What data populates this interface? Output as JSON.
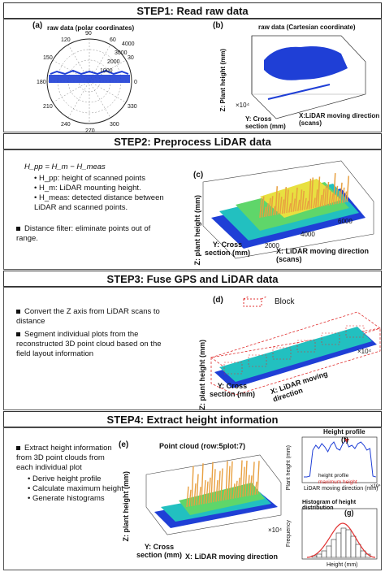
{
  "step1": {
    "header": "STEP1: Read raw data",
    "a_label": "(a)",
    "a_title": "raw data (polar coordinates)",
    "a_ticks": [
      "0",
      "30",
      "60",
      "90",
      "120",
      "150",
      "180",
      "210",
      "240",
      "270",
      "300",
      "330"
    ],
    "a_radial": [
      "1000",
      "2000",
      "3000",
      "4000"
    ],
    "b_label": "(b)",
    "b_title": "raw data  (Cartesian coordinate)",
    "b_z": "Z: Plant height (mm)",
    "b_y": "Y: Cross section (mm)",
    "b_x": "X:LiDAR moving direction (scans)",
    "b_exp": "×10⁴"
  },
  "step2": {
    "header": "STEP2: Preprocess LiDAR data",
    "formula": "H_pp = H_m − H_meas",
    "items": [
      "H_pp: height of scanned points",
      "H_m: LiDAR mounting height.",
      "H_meas: detected distance between LiDAR and scanned points."
    ],
    "filter": "Distance filter: eliminate points out of range.",
    "c_label": "(c)",
    "c_z": "Z: plant height (mm)",
    "c_y": "Y: Cross section (mm)",
    "c_x": "X: LiDAR moving direction (scans)",
    "c_zticks": [
      "1000",
      "500",
      "0"
    ],
    "c_xticks": [
      "2000",
      "4000",
      "6000"
    ],
    "c_yticks": [
      "1000",
      "0",
      "-1000"
    ]
  },
  "step3": {
    "header": "STEP3: Fuse GPS and LiDAR data",
    "items": [
      "Convert the Z axis from LiDAR scans to distance",
      "Segment individual plots from the reconstructed 3D point cloud based on the field layout information"
    ],
    "d_label": "(d)",
    "legend": "Block",
    "d_z": "Z: plant height (mm)",
    "d_y": "Y: Cross section (mm)",
    "d_x": "X: LiDAR moving direction",
    "d_exp": "×10⁴",
    "d_xticks": [
      "3",
      "3.5",
      "4"
    ],
    "d_zticks": [
      "2000",
      "1000",
      "0"
    ],
    "d_yticks": [
      "1000",
      "0",
      "-1000"
    ]
  },
  "step4": {
    "header": "STEP4: Extract height information",
    "intro": "Extract height information from 3D point clouds from each individual plot",
    "subitems": [
      "Derive height profile",
      "Calculate maximum height",
      "Generate histograms"
    ],
    "e_label": "(e)",
    "e_title": "Point cloud (row:5plot:7)",
    "e_z": "Z: plant height (mm)",
    "e_y": "Y: Cross section (mm)",
    "e_x": "X: LiDAR moving direction",
    "e_exp": "×10⁴",
    "e_zticks": [
      "1000",
      "500",
      "0"
    ],
    "e_xticks": [
      "3.6",
      "3.7"
    ],
    "e_yticks": [
      "200",
      "0",
      "-200"
    ],
    "f_label": "(f)",
    "f_title": "Height profile",
    "f_ylabel": "Plant height (mm)",
    "f_xlabel": "LiDAR moving direction (mm)",
    "f_exp": "×10⁴",
    "f_xticks": [
      "3.5",
      "3.55",
      "3.6",
      "3.65",
      "3.7",
      "3.75"
    ],
    "f_yticks": [
      "1000",
      "500",
      "0"
    ],
    "f_legend1": "height profile",
    "f_legend2": "maximum height",
    "g_label": "(g)",
    "g_title": "Histogram of height distribution",
    "g_ylabel": "Frequency",
    "g_xlabel": "Height (mm)",
    "g_xticks": [
      "500",
      "1000"
    ]
  },
  "colors": {
    "blue": "#1f3fd6",
    "red": "#e03030",
    "cyan": "#22c0c0",
    "yellow": "#e8e040"
  }
}
